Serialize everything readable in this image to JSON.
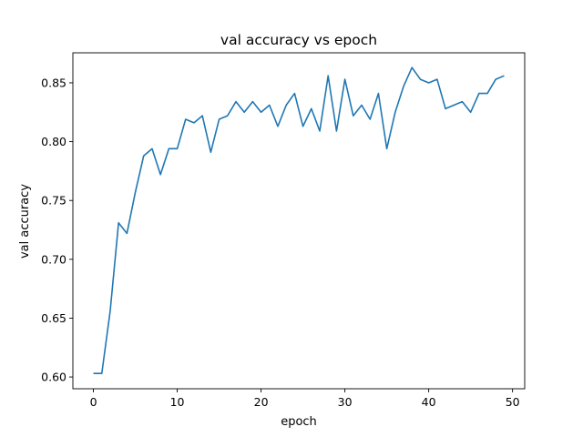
{
  "chart_data": {
    "type": "line",
    "title": "val accuracy vs epoch",
    "xlabel": "epoch",
    "ylabel": "val accuracy",
    "xlim": [
      -2.45,
      51.45
    ],
    "ylim": [
      0.59,
      0.8755
    ],
    "xticks": [
      0,
      10,
      20,
      30,
      40,
      50
    ],
    "xtick_labels": [
      "0",
      "10",
      "20",
      "30",
      "40",
      "50"
    ],
    "yticks": [
      0.6,
      0.65,
      0.7,
      0.75,
      0.8,
      0.85
    ],
    "ytick_labels": [
      "0.60",
      "0.65",
      "0.70",
      "0.75",
      "0.80",
      "0.85"
    ],
    "grid": false,
    "line_color": "#1f77b4",
    "series": [
      {
        "x": [
          0,
          1,
          2,
          3,
          4,
          5,
          6,
          7,
          8,
          9,
          10,
          11,
          12,
          13,
          14,
          15,
          16,
          17,
          18,
          19,
          20,
          21,
          22,
          23,
          24,
          25,
          26,
          27,
          28,
          29,
          30,
          31,
          32,
          33,
          34,
          35,
          36,
          37,
          38,
          39,
          40,
          41,
          42,
          43,
          44,
          45,
          46,
          47,
          48,
          49
        ],
        "values": [
          0.603,
          0.603,
          0.656,
          0.731,
          0.722,
          0.757,
          0.788,
          0.794,
          0.772,
          0.794,
          0.794,
          0.819,
          0.816,
          0.822,
          0.791,
          0.819,
          0.822,
          0.834,
          0.825,
          0.834,
          0.825,
          0.831,
          0.813,
          0.831,
          0.841,
          0.813,
          0.828,
          0.809,
          0.856,
          0.809,
          0.853,
          0.822,
          0.831,
          0.819,
          0.841,
          0.794,
          0.825,
          0.847,
          0.863,
          0.853,
          0.85,
          0.853,
          0.828,
          0.831,
          0.834,
          0.825,
          0.841,
          0.841,
          0.853,
          0.856
        ]
      }
    ]
  }
}
